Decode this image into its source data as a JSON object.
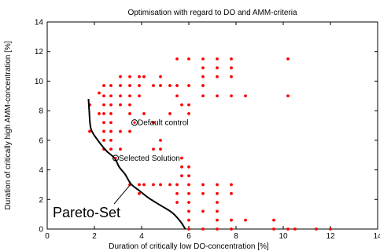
{
  "chart_data": {
    "type": "scatter",
    "title": "Optimisation with regard to DO and AMM-criteria",
    "xlabel": "Duration of critically low DO-concentration [%]",
    "ylabel": "Duration of critically high AMM-concentration [%]",
    "xlim": [
      0,
      14
    ],
    "ylim": [
      0,
      14
    ],
    "xticks": [
      0,
      2,
      4,
      6,
      8,
      10,
      12,
      14
    ],
    "yticks": [
      0,
      2,
      4,
      6,
      8,
      10,
      12,
      14
    ],
    "grid": false,
    "marker_color": "#ff0000",
    "series": [
      {
        "values": [
          [
            1.8,
            8.4
          ],
          [
            1.8,
            6.6
          ],
          [
            2.2,
            9.2
          ],
          [
            2.2,
            7.8
          ],
          [
            2.4,
            9.7
          ],
          [
            2.4,
            9.0
          ],
          [
            2.4,
            8.4
          ],
          [
            2.4,
            7.8
          ],
          [
            2.4,
            7.2
          ],
          [
            2.4,
            6.6
          ],
          [
            2.4,
            6.0
          ],
          [
            2.4,
            5.4
          ],
          [
            2.7,
            9.7
          ],
          [
            2.7,
            9.0
          ],
          [
            2.7,
            8.4
          ],
          [
            2.7,
            7.8
          ],
          [
            2.7,
            7.2
          ],
          [
            2.7,
            6.6
          ],
          [
            2.7,
            6.0
          ],
          [
            2.7,
            5.4
          ],
          [
            3.1,
            10.3
          ],
          [
            3.1,
            9.7
          ],
          [
            3.1,
            9.0
          ],
          [
            3.1,
            8.4
          ],
          [
            3.1,
            6.6
          ],
          [
            3.1,
            5.4
          ],
          [
            3.5,
            10.3
          ],
          [
            3.5,
            9.7
          ],
          [
            3.5,
            9.0
          ],
          [
            3.5,
            8.4
          ],
          [
            3.5,
            7.8
          ],
          [
            3.5,
            6.6
          ],
          [
            3.5,
            3.0
          ],
          [
            3.9,
            10.3
          ],
          [
            3.9,
            9.7
          ],
          [
            3.9,
            9.0
          ],
          [
            3.9,
            3.0
          ],
          [
            3.9,
            2.4
          ],
          [
            4.1,
            10.3
          ],
          [
            4.1,
            7.8
          ],
          [
            4.1,
            3.0
          ],
          [
            4.5,
            9.7
          ],
          [
            4.5,
            7.2
          ],
          [
            4.5,
            5.4
          ],
          [
            4.5,
            3.0
          ],
          [
            4.8,
            10.3
          ],
          [
            4.8,
            9.7
          ],
          [
            4.8,
            6.0
          ],
          [
            4.8,
            5.4
          ],
          [
            4.8,
            3.0
          ],
          [
            5.2,
            9.7
          ],
          [
            5.2,
            7.8
          ],
          [
            5.2,
            3.0
          ],
          [
            5.5,
            11.5
          ],
          [
            5.5,
            9.7
          ],
          [
            5.5,
            9.0
          ],
          [
            5.5,
            3.0
          ],
          [
            5.5,
            2.4
          ],
          [
            5.5,
            1.8
          ],
          [
            5.7,
            8.4
          ],
          [
            5.7,
            4.8
          ],
          [
            5.7,
            4.2
          ],
          [
            5.7,
            3.6
          ],
          [
            6.0,
            11.5
          ],
          [
            6.0,
            9.7
          ],
          [
            6.0,
            8.4
          ],
          [
            6.0,
            7.8
          ],
          [
            6.0,
            4.2
          ],
          [
            6.0,
            3.6
          ],
          [
            6.0,
            3.0
          ],
          [
            6.0,
            2.4
          ],
          [
            6.0,
            1.8
          ],
          [
            6.0,
            1.2
          ],
          [
            6.0,
            0.6
          ],
          [
            6.0,
            0.0
          ],
          [
            6.6,
            11.5
          ],
          [
            6.6,
            10.9
          ],
          [
            6.6,
            10.3
          ],
          [
            6.6,
            9.7
          ],
          [
            6.6,
            9.0
          ],
          [
            6.6,
            3.0
          ],
          [
            6.6,
            2.4
          ],
          [
            6.6,
            1.2
          ],
          [
            6.6,
            0.0
          ],
          [
            7.2,
            11.5
          ],
          [
            7.2,
            10.9
          ],
          [
            7.2,
            10.3
          ],
          [
            7.2,
            9.0
          ],
          [
            7.2,
            3.0
          ],
          [
            7.2,
            2.4
          ],
          [
            7.2,
            1.8
          ],
          [
            7.2,
            1.2
          ],
          [
            7.2,
            0.6
          ],
          [
            7.2,
            0.0
          ],
          [
            7.8,
            11.5
          ],
          [
            7.8,
            10.9
          ],
          [
            7.8,
            10.3
          ],
          [
            7.8,
            9.0
          ],
          [
            7.8,
            3.0
          ],
          [
            7.8,
            2.4
          ],
          [
            7.8,
            0.6
          ],
          [
            7.8,
            0.0
          ],
          [
            8.4,
            9.0
          ],
          [
            8.4,
            0.6
          ],
          [
            9.6,
            0.6
          ],
          [
            9.6,
            0.0
          ],
          [
            10.2,
            11.5
          ],
          [
            10.2,
            9.0
          ],
          [
            10.2,
            0.0
          ],
          [
            10.5,
            0.0
          ],
          [
            11.4,
            0.0
          ],
          [
            12.0,
            0.0
          ]
        ]
      }
    ],
    "pareto_curve": [
      [
        1.75,
        8.8
      ],
      [
        1.78,
        8.0
      ],
      [
        1.85,
        6.8
      ],
      [
        2.1,
        6.1
      ],
      [
        2.5,
        5.3
      ],
      [
        2.85,
        4.8
      ],
      [
        3.05,
        4.2
      ],
      [
        3.3,
        3.7
      ],
      [
        3.55,
        3.05
      ],
      [
        3.9,
        2.6
      ],
      [
        4.3,
        2.1
      ],
      [
        4.8,
        1.6
      ],
      [
        5.3,
        1.1
      ],
      [
        5.65,
        0.5
      ],
      [
        5.85,
        0.0
      ]
    ],
    "annotations": [
      {
        "text": "Default control",
        "x": 3.7,
        "y": 7.2,
        "circled": true,
        "label_style": "small"
      },
      {
        "text": "Selected Solution",
        "x": 2.9,
        "y": 4.8,
        "circled": true,
        "label_style": "small"
      },
      {
        "text": "Pareto-Set",
        "x": 3.55,
        "y": 3.05,
        "label_style": "large",
        "pointer": true
      }
    ]
  }
}
